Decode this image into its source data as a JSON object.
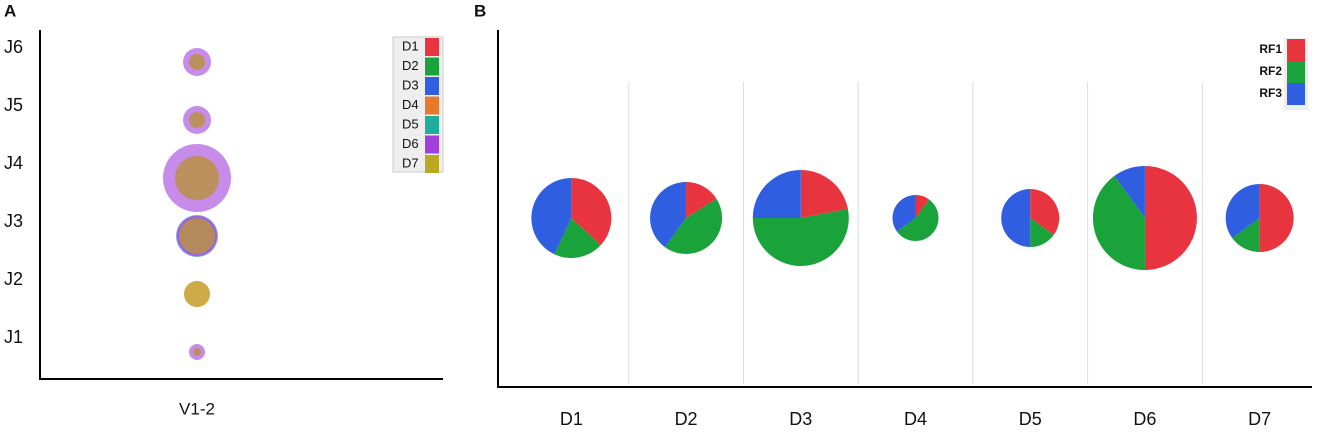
{
  "chart_data": [
    {
      "label": "A",
      "type": "bubble",
      "categories": [
        "J1",
        "J2",
        "J3",
        "J4",
        "J5",
        "J6"
      ],
      "x_categories": [
        "V1-2"
      ],
      "legend": "upper right",
      "series": [
        {
          "name": "D1",
          "color": "#e8343f",
          "values": [
            null,
            null,
            null,
            null,
            null,
            null
          ]
        },
        {
          "name": "D2",
          "color": "#1aa33a",
          "values": [
            null,
            null,
            null,
            null,
            null,
            null
          ]
        },
        {
          "name": "D3",
          "color": "#2f5fe0",
          "values": [
            null,
            null,
            21,
            null,
            null,
            null
          ]
        },
        {
          "name": "D4",
          "color": "#e8792a",
          "values": [
            4,
            13,
            18,
            22,
            8,
            8
          ]
        },
        {
          "name": "D5",
          "color": "#1fae9a",
          "values": [
            null,
            null,
            null,
            null,
            null,
            null
          ]
        },
        {
          "name": "D6",
          "color": "#a13fdc",
          "values": [
            8,
            null,
            20,
            34,
            14,
            14
          ]
        },
        {
          "name": "D7",
          "color": "#b9a821",
          "values": [
            4,
            13,
            18,
            22,
            8,
            8
          ]
        }
      ]
    },
    {
      "label": "B",
      "type": "pie",
      "categories": [
        "D1",
        "D2",
        "D3",
        "D4",
        "D5",
        "D6",
        "D7"
      ],
      "sizes": [
        40,
        36,
        48,
        23,
        29,
        52,
        34
      ],
      "legend": "upper right",
      "grid": true,
      "series": [
        {
          "name": "RF1",
          "color": "#e8343f",
          "values": [
            37,
            16,
            22,
            10,
            35,
            50,
            50
          ]
        },
        {
          "name": "RF2",
          "color": "#1aa33a",
          "values": [
            20,
            44,
            53,
            55,
            15,
            40,
            15
          ]
        },
        {
          "name": "RF3",
          "color": "#2f5fe0",
          "values": [
            43,
            40,
            25,
            35,
            50,
            10,
            35
          ]
        }
      ]
    }
  ]
}
